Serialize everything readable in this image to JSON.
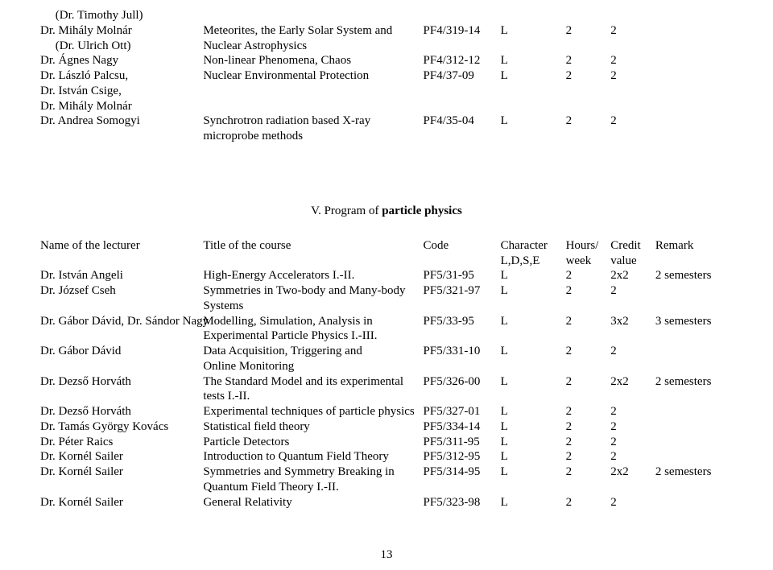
{
  "top_rows": [
    {
      "lecturer": "     (Dr. Timothy Jull)",
      "title": "",
      "code": "",
      "char": "",
      "hours": "",
      "credit": "",
      "remark": ""
    },
    {
      "lecturer": "Dr. Mihály Molnár",
      "title": "Meteorites, the Early Solar System and",
      "code": "PF4/319-14",
      "char": "L",
      "hours": "2",
      "credit": "2",
      "remark": ""
    },
    {
      "lecturer": "     (Dr. Ulrich Ott)",
      "title": "Nuclear Astrophysics",
      "code": "",
      "char": "",
      "hours": "",
      "credit": "",
      "remark": ""
    },
    {
      "lecturer": "Dr. Ágnes Nagy",
      "title": "Non-linear Phenomena, Chaos",
      "code": "PF4/312-12",
      "char": "L",
      "hours": "2",
      "credit": "2",
      "remark": ""
    },
    {
      "lecturer": "Dr. László Palcsu,",
      "title": "Nuclear Environmental Protection",
      "code": "PF4/37-09",
      "char": "L",
      "hours": "2",
      "credit": "2",
      "remark": ""
    },
    {
      "lecturer": "Dr. István Csige,",
      "title": "",
      "code": "",
      "char": "",
      "hours": "",
      "credit": "",
      "remark": ""
    },
    {
      "lecturer": "Dr. Mihály Molnár",
      "title": "",
      "code": "",
      "char": "",
      "hours": "",
      "credit": "",
      "remark": ""
    },
    {
      "lecturer": "Dr. Andrea Somogyi",
      "title": "Synchrotron radiation based X-ray",
      "code": "PF4/35-04",
      "char": "L",
      "hours": "2",
      "credit": "2",
      "remark": ""
    },
    {
      "lecturer": "",
      "title": "microprobe methods",
      "code": "",
      "char": "",
      "hours": "",
      "credit": "",
      "remark": ""
    }
  ],
  "section": {
    "prefix": "V. Program of ",
    "bold": "particle physics"
  },
  "header": {
    "lecturer": "Name of the lecturer",
    "title": "Title of the course",
    "code": "Code",
    "char1": "Character",
    "char2": "L,D,S,E",
    "hours1": "Hours/",
    "hours2": "week",
    "credit1": "Credit",
    "credit2": "value",
    "remark": "Remark"
  },
  "main_rows": [
    {
      "lecturer": "Dr. István Angeli",
      "title": "High-Energy Accelerators I.-II.",
      "code": "PF5/31-95",
      "char": "L",
      "hours": "2",
      "credit": "2x2",
      "remark": "2 semesters"
    },
    {
      "lecturer": "Dr. József Cseh",
      "title": "Symmetries in Two-body and Many-body",
      "code": "PF5/321-97",
      "char": "L",
      "hours": "2",
      "credit": "2",
      "remark": ""
    },
    {
      "lecturer": "",
      "title": "Systems",
      "code": "",
      "char": "",
      "hours": "",
      "credit": "",
      "remark": ""
    },
    {
      "lecturer": "Dr. Gábor Dávid, Dr. Sándor Nagy",
      "title": "Modelling, Simulation, Analysis in",
      "code": "PF5/33-95",
      "char": "L",
      "hours": "2",
      "credit": "3x2",
      "remark": "3 semesters"
    },
    {
      "lecturer": "",
      "title": "Experimental Particle Physics I.-III.",
      "code": "",
      "char": "",
      "hours": "",
      "credit": "",
      "remark": ""
    },
    {
      "lecturer": "Dr. Gábor Dávid",
      "title": "Data Acquisition, Triggering and",
      "code": "PF5/331-10",
      "char": "L",
      "hours": "2",
      "credit": "2",
      "remark": ""
    },
    {
      "lecturer": "",
      "title": "Online Monitoring",
      "code": "",
      "char": "",
      "hours": "",
      "credit": "",
      "remark": ""
    },
    {
      "lecturer": "Dr. Dezső Horváth",
      "title": "The Standard Model and its experimental",
      "code": "PF5/326-00",
      "char": "L",
      "hours": "2",
      "credit": "2x2",
      "remark": "2 semesters"
    },
    {
      "lecturer": "",
      "title": "tests I.-II.",
      "code": "",
      "char": "",
      "hours": "",
      "credit": "",
      "remark": ""
    },
    {
      "lecturer": "Dr. Dezső Horváth",
      "title": "Experimental techniques of particle physics",
      "code": "PF5/327-01",
      "char": "L",
      "hours": "2",
      "credit": "2",
      "remark": ""
    },
    {
      "lecturer": "Dr. Tamás György Kovács",
      "title": "Statistical field theory",
      "code": "PF5/334-14",
      "char": "L",
      "hours": "2",
      "credit": "2",
      "remark": ""
    },
    {
      "lecturer": "Dr. Péter Raics",
      "title": "Particle Detectors",
      "code": "PF5/311-95",
      "char": "L",
      "hours": "2",
      "credit": "2",
      "remark": ""
    },
    {
      "lecturer": "Dr. Kornél Sailer",
      "title": "Introduction to Quantum Field Theory",
      "code": "PF5/312-95",
      "char": "L",
      "hours": "2",
      "credit": "2",
      "remark": ""
    },
    {
      "lecturer": "Dr. Kornél Sailer",
      "title": "Symmetries and Symmetry Breaking in",
      "code": "PF5/314-95",
      "char": "L",
      "hours": "2",
      "credit": "2x2",
      "remark": "2 semesters"
    },
    {
      "lecturer": "",
      "title": "Quantum Field Theory I.-II.",
      "code": "",
      "char": "",
      "hours": "",
      "credit": "",
      "remark": ""
    },
    {
      "lecturer": "Dr. Kornél Sailer",
      "title": "General Relativity",
      "code": "PF5/323-98",
      "char": "L",
      "hours": "2",
      "credit": "2",
      "remark": ""
    }
  ],
  "page_number": "13"
}
